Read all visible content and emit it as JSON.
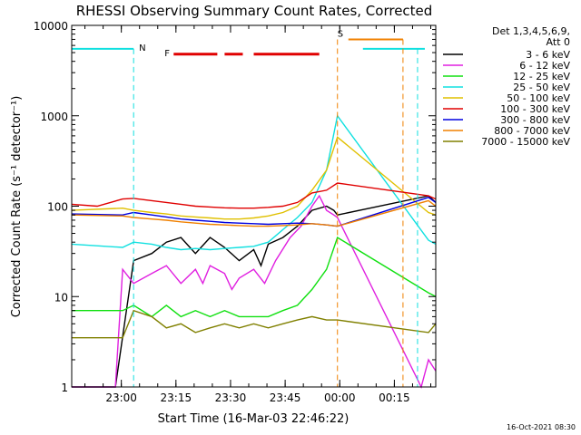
{
  "chart_data": {
    "type": "line",
    "title": "RHESSI Observing Summary Count Rates, Corrected",
    "xlabel": "Start Time (16-Mar-03 22:46:22)",
    "ylabel": "Corrected Count Rate (s⁻¹ detector⁻¹)",
    "yscale": "log",
    "ylim": [
      1,
      10000
    ],
    "xlim_minutes": [
      0,
      100
    ],
    "y_ticks": [
      {
        "value": 1,
        "label": "1"
      },
      {
        "value": 10,
        "label": "10"
      },
      {
        "value": 100,
        "label": "100"
      },
      {
        "value": 1000,
        "label": "1000"
      },
      {
        "value": 10000,
        "label": "10000"
      }
    ],
    "x_ticks": [
      {
        "value": 13.63,
        "label": "23:00"
      },
      {
        "value": 28.63,
        "label": "23:15"
      },
      {
        "value": 43.63,
        "label": "23:30"
      },
      {
        "value": 58.63,
        "label": "23:45"
      },
      {
        "value": 73.63,
        "label": "00:00"
      },
      {
        "value": 88.63,
        "label": "00:15"
      }
    ],
    "legend": {
      "placement": "right",
      "header": [
        "Det 1,3,4,5,6,9,",
        "Att 0"
      ],
      "entries": [
        {
          "label": "3 - 6 keV",
          "color": "#000000"
        },
        {
          "label": "6 - 12 keV",
          "color": "#e020e0"
        },
        {
          "label": "12 - 25 keV",
          "color": "#10e010"
        },
        {
          "label": "25 - 50 keV",
          "color": "#10e0e0"
        },
        {
          "label": "50 - 100 keV",
          "color": "#e0c000"
        },
        {
          "label": "100 - 300 keV",
          "color": "#e00000"
        },
        {
          "label": "300 - 800 keV",
          "color": "#0000e0"
        },
        {
          "label": "800 - 7000 keV",
          "color": "#f08000"
        },
        {
          "label": "7000 - 15000 keV",
          "color": "#808000"
        }
      ]
    },
    "flags": [
      {
        "label": "N",
        "color": "#10e0e0",
        "y": 5500,
        "segments": [
          [
            0,
            17
          ],
          [
            80,
            97
          ]
        ],
        "markers": [
          17,
          95
        ]
      },
      {
        "label": "S",
        "color": "#f08000",
        "y": 7000,
        "segments": [
          [
            76,
            91
          ]
        ],
        "markers": [
          73,
          91
        ]
      },
      {
        "label": "F",
        "color": "#e00000",
        "y": 4800,
        "segments": [
          [
            28,
            40
          ],
          [
            42,
            47
          ],
          [
            50,
            68
          ]
        ]
      }
    ],
    "series": [
      {
        "name": "3 - 6 keV",
        "color": "#000000",
        "points": [
          [
            0,
            1
          ],
          [
            12,
            1
          ],
          [
            17,
            25
          ],
          [
            22,
            30
          ],
          [
            26,
            40
          ],
          [
            30,
            45
          ],
          [
            34,
            30
          ],
          [
            38,
            45
          ],
          [
            42,
            35
          ],
          [
            46,
            25
          ],
          [
            50,
            33
          ],
          [
            52,
            22
          ],
          [
            54,
            38
          ],
          [
            58,
            45
          ],
          [
            62,
            60
          ],
          [
            66,
            90
          ],
          [
            70,
            100
          ],
          [
            72,
            90
          ],
          [
            73,
            80
          ],
          [
            98,
            130
          ],
          [
            100,
            110
          ]
        ]
      },
      {
        "name": "6 - 12 keV",
        "color": "#e020e0",
        "points": [
          [
            0,
            1
          ],
          [
            12,
            1
          ],
          [
            14,
            20
          ],
          [
            17,
            14
          ],
          [
            22,
            18
          ],
          [
            26,
            22
          ],
          [
            30,
            14
          ],
          [
            34,
            20
          ],
          [
            36,
            14
          ],
          [
            38,
            22
          ],
          [
            42,
            18
          ],
          [
            44,
            12
          ],
          [
            46,
            16
          ],
          [
            50,
            20
          ],
          [
            53,
            14
          ],
          [
            56,
            25
          ],
          [
            60,
            45
          ],
          [
            63,
            60
          ],
          [
            66,
            100
          ],
          [
            68,
            130
          ],
          [
            70,
            90
          ],
          [
            72,
            80
          ],
          [
            73,
            75
          ],
          [
            96,
            1
          ],
          [
            98,
            2
          ],
          [
            100,
            1.5
          ]
        ]
      },
      {
        "name": "12 - 25 keV",
        "color": "#10e010",
        "points": [
          [
            0,
            7
          ],
          [
            14,
            7
          ],
          [
            17,
            8
          ],
          [
            22,
            6
          ],
          [
            26,
            8
          ],
          [
            30,
            6
          ],
          [
            34,
            7
          ],
          [
            38,
            6
          ],
          [
            42,
            7
          ],
          [
            46,
            6
          ],
          [
            50,
            6
          ],
          [
            54,
            6
          ],
          [
            58,
            7
          ],
          [
            62,
            8
          ],
          [
            66,
            12
          ],
          [
            70,
            20
          ],
          [
            73,
            45
          ],
          [
            98,
            11
          ],
          [
            100,
            10
          ]
        ]
      },
      {
        "name": "25 - 50 keV",
        "color": "#10e0e0",
        "points": [
          [
            0,
            38
          ],
          [
            14,
            35
          ],
          [
            17,
            40
          ],
          [
            22,
            38
          ],
          [
            26,
            35
          ],
          [
            30,
            33
          ],
          [
            34,
            34
          ],
          [
            38,
            33
          ],
          [
            42,
            34
          ],
          [
            46,
            35
          ],
          [
            50,
            36
          ],
          [
            54,
            40
          ],
          [
            58,
            55
          ],
          [
            62,
            75
          ],
          [
            66,
            110
          ],
          [
            70,
            250
          ],
          [
            73,
            1000
          ],
          [
            98,
            42
          ],
          [
            100,
            38
          ]
        ]
      },
      {
        "name": "50 - 100 keV",
        "color": "#e0c000",
        "points": [
          [
            0,
            90
          ],
          [
            14,
            95
          ],
          [
            17,
            90
          ],
          [
            22,
            85
          ],
          [
            26,
            82
          ],
          [
            30,
            78
          ],
          [
            34,
            76
          ],
          [
            38,
            74
          ],
          [
            42,
            72
          ],
          [
            46,
            72
          ],
          [
            50,
            74
          ],
          [
            54,
            78
          ],
          [
            58,
            85
          ],
          [
            62,
            100
          ],
          [
            66,
            150
          ],
          [
            70,
            250
          ],
          [
            73,
            580
          ],
          [
            98,
            85
          ],
          [
            100,
            80
          ]
        ]
      },
      {
        "name": "100 - 300 keV",
        "color": "#e00000",
        "points": [
          [
            0,
            105
          ],
          [
            7,
            100
          ],
          [
            14,
            120
          ],
          [
            17,
            122
          ],
          [
            22,
            115
          ],
          [
            26,
            110
          ],
          [
            30,
            105
          ],
          [
            34,
            100
          ],
          [
            38,
            98
          ],
          [
            42,
            96
          ],
          [
            46,
            95
          ],
          [
            50,
            95
          ],
          [
            54,
            97
          ],
          [
            58,
            100
          ],
          [
            62,
            110
          ],
          [
            66,
            140
          ],
          [
            70,
            150
          ],
          [
            73,
            180
          ],
          [
            98,
            130
          ],
          [
            100,
            120
          ]
        ]
      },
      {
        "name": "300 - 800 keV",
        "color": "#0000e0",
        "points": [
          [
            0,
            82
          ],
          [
            14,
            80
          ],
          [
            17,
            85
          ],
          [
            22,
            80
          ],
          [
            26,
            76
          ],
          [
            30,
            72
          ],
          [
            34,
            70
          ],
          [
            38,
            68
          ],
          [
            42,
            66
          ],
          [
            46,
            65
          ],
          [
            50,
            64
          ],
          [
            54,
            63
          ],
          [
            58,
            64
          ],
          [
            62,
            65
          ],
          [
            66,
            64
          ],
          [
            70,
            62
          ],
          [
            73,
            60
          ],
          [
            98,
            125
          ],
          [
            100,
            110
          ]
        ]
      },
      {
        "name": "800 - 7000 keV",
        "color": "#f08000",
        "points": [
          [
            0,
            80
          ],
          [
            14,
            78
          ],
          [
            17,
            75
          ],
          [
            22,
            72
          ],
          [
            26,
            70
          ],
          [
            30,
            67
          ],
          [
            34,
            65
          ],
          [
            38,
            63
          ],
          [
            42,
            62
          ],
          [
            46,
            61
          ],
          [
            50,
            60
          ],
          [
            54,
            60
          ],
          [
            58,
            61
          ],
          [
            62,
            62
          ],
          [
            66,
            64
          ],
          [
            70,
            62
          ],
          [
            73,
            60
          ],
          [
            98,
            115
          ],
          [
            100,
            100
          ]
        ]
      },
      {
        "name": "7000 - 15000 keV",
        "color": "#808000",
        "points": [
          [
            0,
            3.5
          ],
          [
            14,
            3.5
          ],
          [
            17,
            7
          ],
          [
            22,
            6
          ],
          [
            26,
            4.5
          ],
          [
            30,
            5
          ],
          [
            34,
            4
          ],
          [
            38,
            4.5
          ],
          [
            42,
            5
          ],
          [
            46,
            4.5
          ],
          [
            50,
            5
          ],
          [
            54,
            4.5
          ],
          [
            58,
            5
          ],
          [
            62,
            5.5
          ],
          [
            66,
            6
          ],
          [
            70,
            5.5
          ],
          [
            73,
            5.5
          ],
          [
            98,
            4
          ],
          [
            100,
            5
          ]
        ]
      }
    ]
  },
  "footer": {
    "timestamp": "16-Oct-2021 08:30"
  }
}
